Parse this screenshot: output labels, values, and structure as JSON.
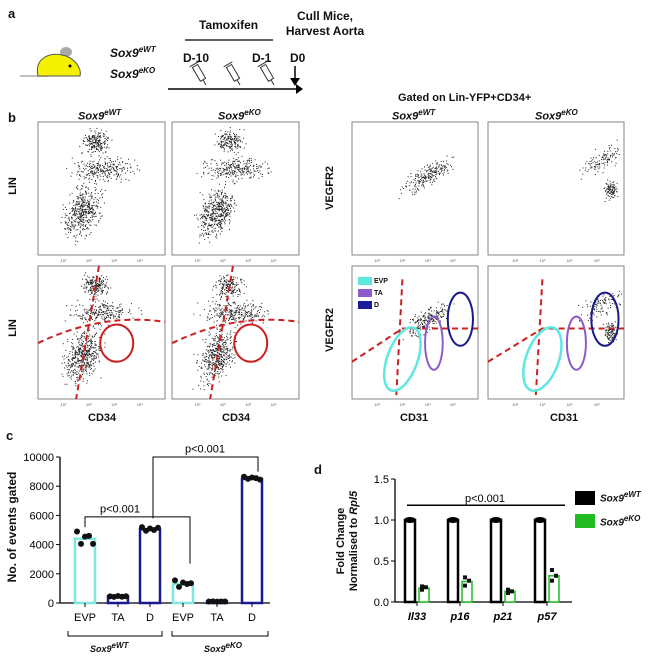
{
  "panels": {
    "a": "a",
    "b": "b",
    "c": "c",
    "d": "d"
  },
  "panel_a": {
    "genotype_wt": {
      "base": "Sox9",
      "sup": "eWT"
    },
    "genotype_ko": {
      "base": "Sox9",
      "sup": "eKO"
    },
    "treatment": "Tamoxifen",
    "endpoint_line1": "Cull Mice,",
    "endpoint_line2": "Harvest Aorta",
    "timepoints": [
      "D-10",
      "D-1",
      "D0"
    ]
  },
  "panel_b": {
    "gating_title": "Gated on Lin-YFP+CD34+",
    "col_wt": {
      "base": "Sox9",
      "sup": "eWT"
    },
    "col_ko": {
      "base": "Sox9",
      "sup": "eKO"
    },
    "ylabel_left": "LIN",
    "xlabel_left": "CD34",
    "ylabel_right": "VEGFR2",
    "xlabel_right": "CD31",
    "legend": [
      {
        "label": "EVP",
        "color": "#5ee8e0"
      },
      {
        "label": "TA",
        "color": "#8e5cc8"
      },
      {
        "label": "D",
        "color": "#1a1a9a"
      }
    ],
    "gate_color": "#cc2020"
  },
  "chart_data": [
    {
      "type": "bar",
      "panel": "c",
      "ylabel": "No. of events gated",
      "ylim": [
        0,
        10000
      ],
      "yticks": [
        "0",
        "2000",
        "4000",
        "6000",
        "8000",
        "10000"
      ],
      "categories": [
        "EVP",
        "TA",
        "D",
        "EVP",
        "TA",
        "D"
      ],
      "groups": [
        {
          "label": {
            "base": "Sox9",
            "sup": "eWT"
          }
        },
        {
          "label": {
            "base": "Sox9",
            "sup": "eKO"
          }
        }
      ],
      "values": [
        4400,
        450,
        5050,
        1300,
        100,
        8500
      ],
      "points": [
        [
          4900,
          4050,
          4550,
          4600,
          4050
        ],
        [
          450,
          420,
          480,
          430,
          460
        ],
        [
          5200,
          4950,
          5100,
          5000,
          5150
        ],
        [
          1550,
          1100,
          1400,
          1300,
          1350
        ],
        [
          100,
          110,
          90,
          100,
          105
        ],
        [
          8650,
          8500,
          8600,
          8550,
          8450
        ]
      ],
      "bar_colors": [
        "#7fe6e0",
        "#1a1a90",
        "#1a1a90",
        "#7fe6e0",
        "#1a1a90",
        "#1a1a90"
      ],
      "annotations": [
        "p<0.001",
        "p<0.001"
      ]
    },
    {
      "type": "bar",
      "panel": "d",
      "ylabel_line1": "Fold Change",
      "ylabel_line2_prefix": "Normalised to ",
      "ylabel_line2_gene": "Rpl5",
      "ylim": [
        0,
        1.5
      ],
      "yticks": [
        "0.0",
        "0.5",
        "1.0",
        "1.5"
      ],
      "categories": [
        "Il33",
        "p16",
        "p21",
        "p57"
      ],
      "series": [
        {
          "name": {
            "base": "Sox9",
            "sup": "eWT"
          },
          "color": "#000000",
          "values": [
            1.0,
            1.0,
            1.0,
            1.0
          ]
        },
        {
          "name": {
            "base": "Sox9",
            "sup": "eKO"
          },
          "color": "#22bb22",
          "values": [
            0.17,
            0.25,
            0.13,
            0.32
          ],
          "points": [
            [
              0.15,
              0.18,
              0.19
            ],
            [
              0.2,
              0.26,
              0.3
            ],
            [
              0.11,
              0.13,
              0.15
            ],
            [
              0.26,
              0.32,
              0.39
            ]
          ]
        }
      ],
      "annotation": "p<0.001",
      "legend": "right"
    }
  ]
}
